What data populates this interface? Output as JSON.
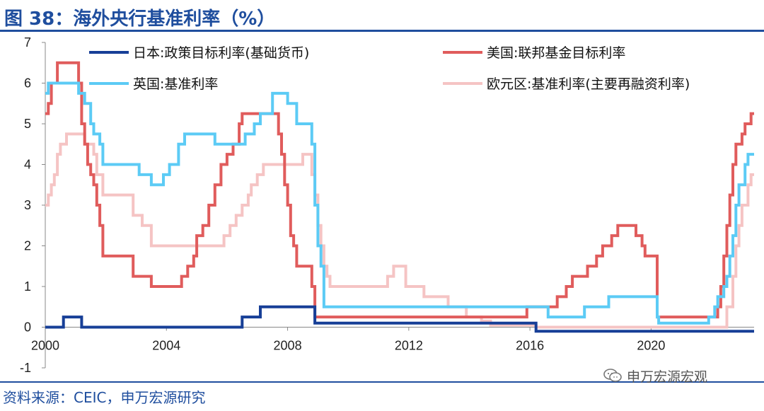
{
  "header": {
    "title": "图 38：海外央行基准利率（%）"
  },
  "footer": {
    "source": "资料来源：CEIC，申万宏源研究",
    "watermark": "申万宏源宏观"
  },
  "colors": {
    "accent": "#1f4e9e",
    "japan": "#173f97",
    "us": "#e05c5c",
    "uk": "#5ccbf5",
    "euro": "#f5c4c4"
  },
  "chart_data": {
    "type": "line",
    "title": "海外央行基准利率（%）",
    "xlabel": "",
    "ylabel": "",
    "xlim": [
      2000.0,
      2023.4
    ],
    "ylim": [
      -1,
      7
    ],
    "xticks": [
      "2000",
      "2004",
      "2008",
      "2012",
      "2016",
      "2020"
    ],
    "yticks": [
      "7",
      "6",
      "5",
      "4",
      "3",
      "2",
      "1",
      "0",
      "-1"
    ],
    "legend_position": "top",
    "series": [
      {
        "name": "日本:政策目标利率(基础货币)",
        "color": "#173f97",
        "x": [
          2000.0,
          2000.6,
          2001.1,
          2001.2,
          2006.5,
          2007.1,
          2008.8,
          2008.9,
          2016.1,
          2016.2,
          2023.4
        ],
        "y": [
          0.0,
          0.25,
          0.25,
          0.0,
          0.25,
          0.5,
          0.5,
          0.1,
          0.1,
          -0.1,
          -0.1
        ]
      },
      {
        "name": "美国:联邦基金目标利率",
        "color": "#e05c5c",
        "x": [
          2000.0,
          2000.1,
          2000.2,
          2000.4,
          2001.0,
          2001.1,
          2001.2,
          2001.3,
          2001.4,
          2001.5,
          2001.6,
          2001.7,
          2001.8,
          2001.9,
          2002.9,
          2003.5,
          2004.5,
          2004.7,
          2004.9,
          2005.0,
          2005.2,
          2005.4,
          2005.6,
          2005.8,
          2006.0,
          2006.2,
          2006.4,
          2006.5,
          2007.7,
          2007.8,
          2007.9,
          2008.0,
          2008.1,
          2008.2,
          2008.3,
          2008.8,
          2008.9,
          2008.95,
          2015.9,
          2016.9,
          2017.2,
          2017.4,
          2017.9,
          2018.2,
          2018.4,
          2018.7,
          2018.9,
          2019.5,
          2019.7,
          2019.8,
          2020.2,
          2022.2,
          2022.3,
          2022.4,
          2022.5,
          2022.6,
          2022.7,
          2022.8,
          2022.9,
          2023.0,
          2023.1,
          2023.2,
          2023.3,
          2023.4
        ],
        "y": [
          5.25,
          5.5,
          6.0,
          6.5,
          6.5,
          6.0,
          5.0,
          4.5,
          4.0,
          3.75,
          3.5,
          3.0,
          2.5,
          1.75,
          1.25,
          1.0,
          1.25,
          1.5,
          1.75,
          2.25,
          2.5,
          3.0,
          3.5,
          4.0,
          4.25,
          4.5,
          5.0,
          5.25,
          4.75,
          4.25,
          3.5,
          3.0,
          2.25,
          2.0,
          1.5,
          1.0,
          0.25,
          0.25,
          0.5,
          0.75,
          1.0,
          1.25,
          1.5,
          1.75,
          2.0,
          2.25,
          2.5,
          2.25,
          2.0,
          1.75,
          0.25,
          0.5,
          1.0,
          1.75,
          2.5,
          3.25,
          4.0,
          4.5,
          4.5,
          4.75,
          5.0,
          5.0,
          5.25,
          5.25
        ]
      },
      {
        "name": "英国:基准利率",
        "color": "#5ccbf5",
        "x": [
          2000.0,
          2000.1,
          2000.2,
          2001.1,
          2001.3,
          2001.5,
          2001.6,
          2001.8,
          2001.9,
          2003.1,
          2003.5,
          2003.9,
          2004.1,
          2004.4,
          2004.6,
          2005.6,
          2006.6,
          2006.9,
          2007.1,
          2007.5,
          2008.0,
          2008.3,
          2008.8,
          2008.9,
          2009.0,
          2009.1,
          2009.2,
          2016.6,
          2017.8,
          2018.6,
          2020.2,
          2020.25,
          2021.9,
          2022.1,
          2022.2,
          2022.4,
          2022.5,
          2022.6,
          2022.7,
          2022.8,
          2022.9,
          2023.0,
          2023.1,
          2023.2,
          2023.4
        ],
        "y": [
          5.75,
          6.0,
          6.0,
          5.75,
          5.5,
          5.0,
          4.75,
          4.5,
          4.0,
          3.75,
          3.5,
          3.75,
          4.0,
          4.5,
          4.75,
          4.5,
          4.75,
          5.0,
          5.25,
          5.75,
          5.5,
          5.0,
          4.5,
          3.0,
          2.0,
          1.5,
          0.5,
          0.25,
          0.5,
          0.75,
          0.25,
          0.1,
          0.25,
          0.5,
          0.75,
          1.0,
          1.25,
          1.75,
          2.25,
          3.0,
          3.5,
          3.5,
          4.0,
          4.25,
          4.25
        ]
      },
      {
        "name": "欧元区:基准利率(主要再融资利率)",
        "color": "#f5c4c4",
        "x": [
          2000.0,
          2000.1,
          2000.2,
          2000.3,
          2000.4,
          2000.5,
          2000.7,
          2001.3,
          2001.6,
          2001.7,
          2001.9,
          2002.9,
          2003.2,
          2003.5,
          2005.9,
          2006.1,
          2006.3,
          2006.5,
          2006.7,
          2006.8,
          2007.0,
          2007.2,
          2007.5,
          2008.5,
          2008.8,
          2008.9,
          2009.0,
          2009.1,
          2009.2,
          2009.3,
          2009.4,
          2011.3,
          2011.5,
          2011.9,
          2012.0,
          2012.5,
          2013.3,
          2013.9,
          2014.4,
          2014.7,
          2016.2,
          2022.5,
          2022.7,
          2022.8,
          2022.9,
          2023.0,
          2023.1,
          2023.2,
          2023.3,
          2023.4
        ],
        "y": [
          3.0,
          3.25,
          3.5,
          3.75,
          4.25,
          4.5,
          4.75,
          4.5,
          4.25,
          3.75,
          3.25,
          2.75,
          2.5,
          2.0,
          2.25,
          2.5,
          2.75,
          3.0,
          3.25,
          3.5,
          3.75,
          4.0,
          4.0,
          4.25,
          3.75,
          3.25,
          2.5,
          2.0,
          1.5,
          1.25,
          1.0,
          1.25,
          1.5,
          1.0,
          1.0,
          0.75,
          0.5,
          0.25,
          0.15,
          0.05,
          0.0,
          0.5,
          1.25,
          2.0,
          2.5,
          3.0,
          3.0,
          3.5,
          3.75,
          3.75
        ]
      }
    ]
  }
}
